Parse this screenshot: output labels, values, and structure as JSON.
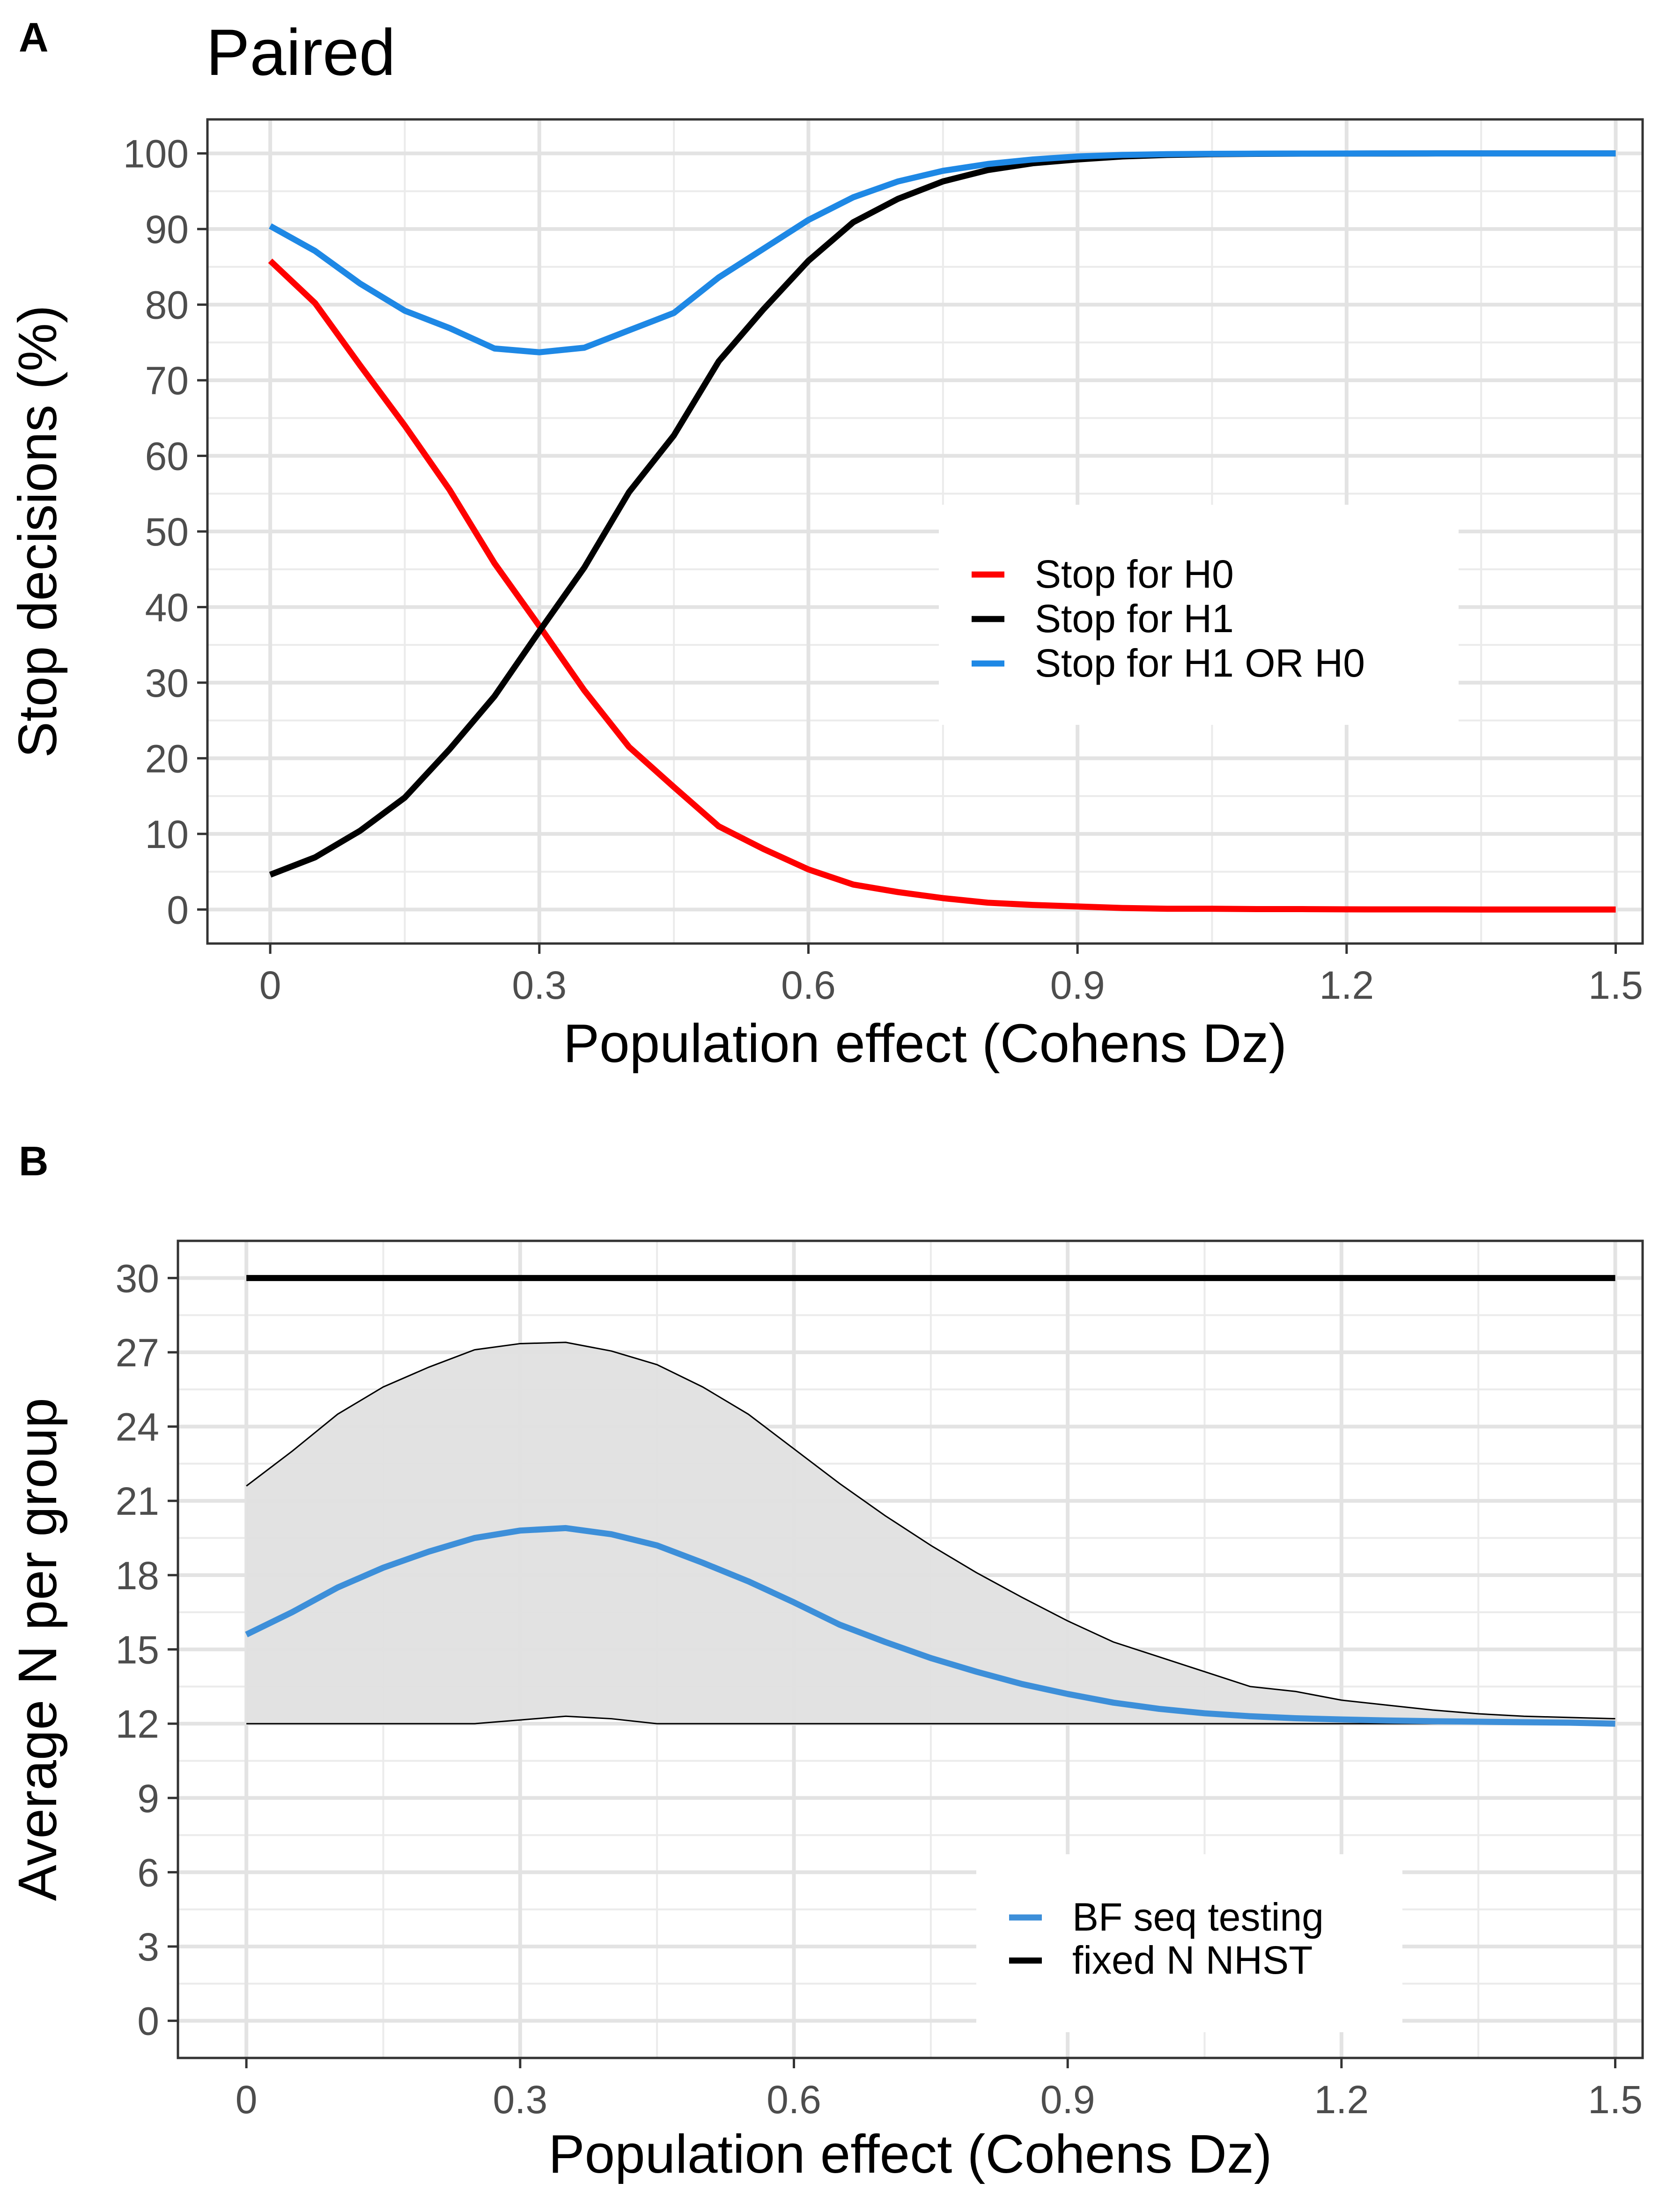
{
  "chart_data": [
    {
      "panel_letter": "A",
      "type": "line",
      "title": "Paired",
      "xlabel": "Population effect (Cohens Dz)",
      "ylabel": "Stop decisions (%)",
      "xlim": [
        -0.07,
        1.53
      ],
      "ylim": [
        -4.5,
        104.5
      ],
      "xticks": [
        0,
        0.3,
        0.6,
        0.9,
        1.2,
        1.5
      ],
      "xtick_labels": [
        "0",
        "0.3",
        "0.6",
        "0.9",
        "1.2",
        "1.5"
      ],
      "yticks": [
        0,
        10,
        20,
        30,
        40,
        50,
        60,
        70,
        80,
        90,
        100
      ],
      "ytick_labels": [
        "0",
        "10",
        "20",
        "30",
        "40",
        "50",
        "60",
        "70",
        "80",
        "90",
        "100"
      ],
      "grid": true,
      "legend_position": "center-right",
      "x": [
        0,
        0.05,
        0.1,
        0.15,
        0.2,
        0.25,
        0.3,
        0.35,
        0.4,
        0.45,
        0.5,
        0.55,
        0.6,
        0.65,
        0.7,
        0.75,
        0.8,
        0.85,
        0.9,
        0.95,
        1.0,
        1.05,
        1.1,
        1.15,
        1.2,
        1.25,
        1.3,
        1.35,
        1.4,
        1.45,
        1.5
      ],
      "series": [
        {
          "name": "Stop for H0",
          "color": "#ff0000",
          "values": [
            85.8,
            80.2,
            72.0,
            64.0,
            55.5,
            45.8,
            37.5,
            29.0,
            21.5,
            16.2,
            11.0,
            8.0,
            5.3,
            3.3,
            2.3,
            1.5,
            0.9,
            0.6,
            0.4,
            0.2,
            0.1,
            0.1,
            0.05,
            0.05,
            0.02,
            0.01,
            0.01,
            0.0,
            0.0,
            0.0,
            0.0
          ]
        },
        {
          "name": "Stop for H1",
          "color": "#000000",
          "values": [
            4.6,
            6.9,
            10.4,
            14.8,
            21.2,
            28.2,
            36.8,
            45.2,
            55.2,
            62.7,
            72.5,
            79.4,
            85.8,
            90.9,
            94.0,
            96.3,
            97.8,
            98.7,
            99.2,
            99.6,
            99.8,
            99.9,
            99.95,
            99.97,
            99.98,
            99.99,
            100,
            100,
            100,
            100,
            100
          ]
        },
        {
          "name": "Stop for H1 OR H0",
          "color": "#1e88e5",
          "values": [
            90.4,
            87.1,
            82.8,
            79.2,
            76.9,
            74.2,
            73.7,
            74.3,
            76.6,
            78.9,
            83.6,
            87.4,
            91.2,
            94.2,
            96.3,
            97.7,
            98.6,
            99.2,
            99.6,
            99.8,
            99.9,
            99.95,
            99.97,
            99.98,
            99.99,
            100,
            100,
            100,
            100,
            100,
            100
          ]
        }
      ]
    },
    {
      "panel_letter": "B",
      "type": "area",
      "title": "",
      "xlabel": "Population effect (Cohens Dz)",
      "ylabel": "Average N per group",
      "xlim": [
        -0.075,
        1.53
      ],
      "ylim": [
        -1.5,
        31.5
      ],
      "xticks": [
        0,
        0.3,
        0.6,
        0.9,
        1.2,
        1.5
      ],
      "xtick_labels": [
        "0",
        "0.3",
        "0.6",
        "0.9",
        "1.2",
        "1.5"
      ],
      "yticks": [
        0,
        3,
        6,
        9,
        12,
        15,
        18,
        21,
        24,
        27,
        30
      ],
      "ytick_labels": [
        "0",
        "3",
        "6",
        "9",
        "12",
        "15",
        "18",
        "21",
        "24",
        "27",
        "30"
      ],
      "grid": true,
      "legend_position": "bottom-right",
      "x": [
        0,
        0.05,
        0.1,
        0.15,
        0.2,
        0.25,
        0.3,
        0.35,
        0.4,
        0.45,
        0.5,
        0.55,
        0.6,
        0.65,
        0.7,
        0.75,
        0.8,
        0.85,
        0.9,
        0.95,
        1.0,
        1.05,
        1.1,
        1.15,
        1.2,
        1.25,
        1.3,
        1.35,
        1.4,
        1.45,
        1.5
      ],
      "band": {
        "color": "#e0e0e0",
        "upper": [
          21.6,
          23.0,
          24.5,
          25.6,
          26.4,
          27.1,
          27.35,
          27.4,
          27.05,
          26.5,
          25.6,
          24.5,
          23.1,
          21.7,
          20.4,
          19.2,
          18.1,
          17.1,
          16.15,
          15.3,
          14.7,
          14.1,
          13.5,
          13.3,
          12.95,
          12.75,
          12.55,
          12.4,
          12.3,
          12.25,
          12.2
        ],
        "lower": [
          12,
          12,
          12,
          12,
          12,
          12,
          12.15,
          12.3,
          12.2,
          12,
          12,
          12,
          12,
          12,
          12,
          12,
          12,
          12,
          12,
          12,
          12,
          12,
          12,
          12,
          12,
          12,
          12,
          12,
          12,
          12,
          12
        ]
      },
      "series": [
        {
          "name": "BF seq testing",
          "color": "#3d8fd9",
          "values": [
            15.6,
            16.5,
            17.5,
            18.3,
            18.95,
            19.5,
            19.8,
            19.9,
            19.65,
            19.2,
            18.5,
            17.75,
            16.9,
            16.0,
            15.3,
            14.65,
            14.1,
            13.6,
            13.2,
            12.85,
            12.6,
            12.42,
            12.3,
            12.22,
            12.17,
            12.13,
            12.1,
            12.08,
            12.06,
            12.04,
            12.0
          ]
        },
        {
          "name": "fixed N NHST",
          "color": "#000000",
          "values": [
            30,
            30,
            30,
            30,
            30,
            30,
            30,
            30,
            30,
            30,
            30,
            30,
            30,
            30,
            30,
            30,
            30,
            30,
            30,
            30,
            30,
            30,
            30,
            30,
            30,
            30,
            30,
            30,
            30,
            30,
            30
          ]
        }
      ],
      "legend_order": [
        "BF seq testing",
        "fixed N NHST"
      ]
    }
  ]
}
